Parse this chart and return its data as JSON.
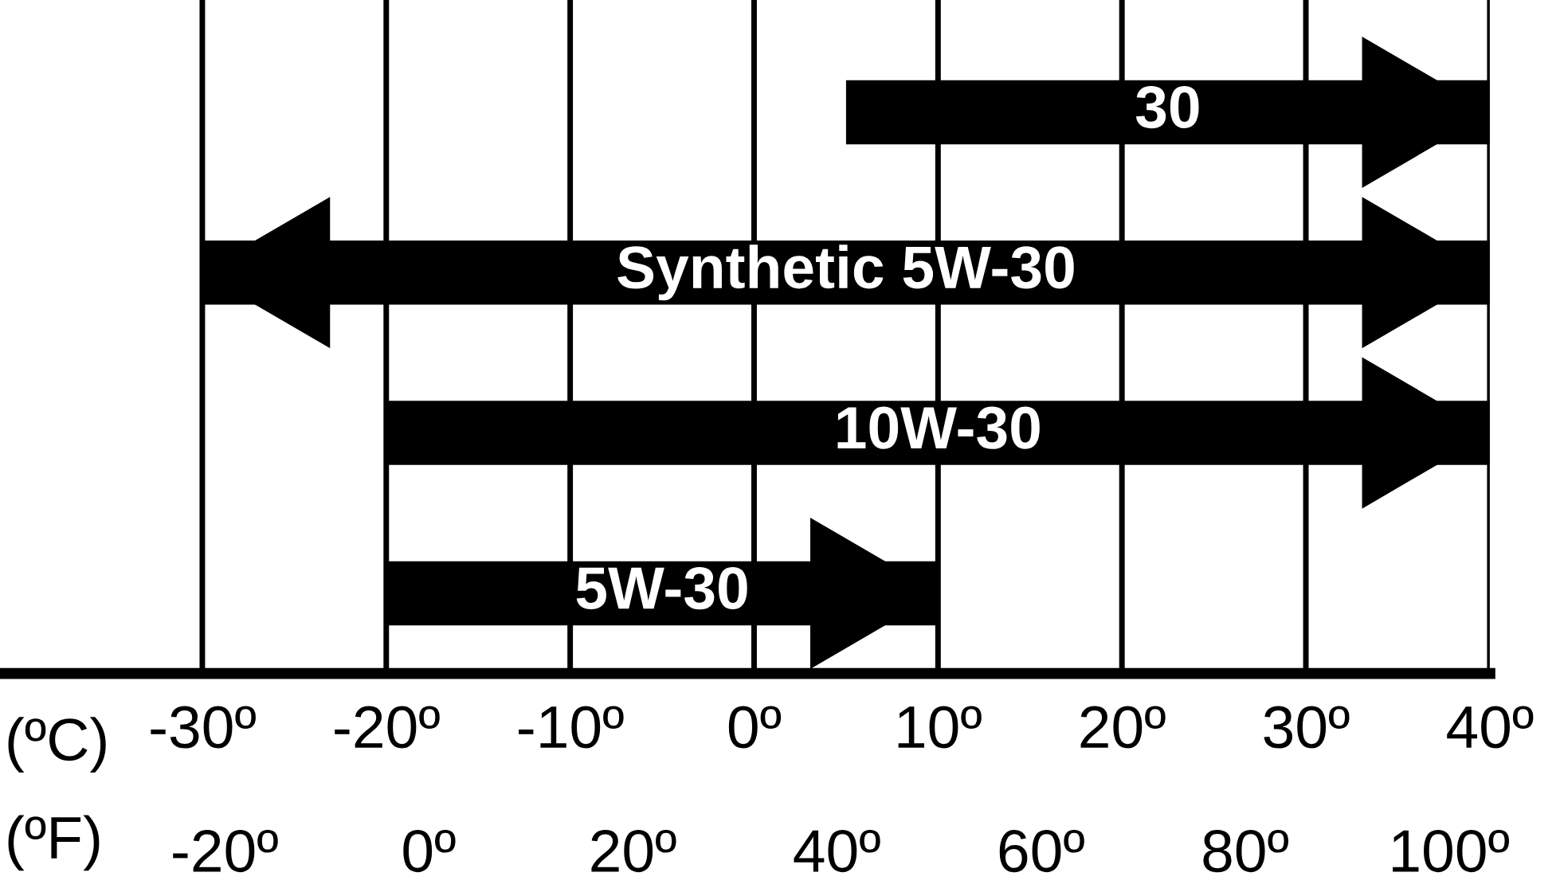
{
  "chart_data": {
    "type": "bar",
    "orientation": "horizontal",
    "categories": [
      "30",
      "Synthetic 5W-30",
      "10W-30",
      "5W-30"
    ],
    "values": [
      35,
      70,
      60,
      30
    ],
    "base": [
      5,
      -30,
      -20,
      -20
    ],
    "color": "#000000",
    "xlabel": "(ºC)",
    "x2label": "(ºF)",
    "xlim": [
      -41,
      40
    ],
    "xticks": [
      {
        "value": -30,
        "label": "-30º"
      },
      {
        "value": -20,
        "label": "-20º"
      },
      {
        "value": -10,
        "label": "-10º"
      },
      {
        "value": 0,
        "label": "0º"
      },
      {
        "value": 10,
        "label": "10º"
      },
      {
        "value": 20,
        "label": "20º"
      },
      {
        "value": 30,
        "label": "30º"
      },
      {
        "value": 40,
        "label": "40º"
      }
    ],
    "x2lim": [
      -42,
      104
    ],
    "x2ticks": [
      {
        "value": -20,
        "label": "-20º"
      },
      {
        "value": 0,
        "label": "0º"
      },
      {
        "value": 20,
        "label": "20º"
      },
      {
        "value": 40,
        "label": "40º"
      },
      {
        "value": 60,
        "label": "60º"
      },
      {
        "value": 80,
        "label": "80º"
      },
      {
        "value": 100,
        "label": "100º"
      }
    ],
    "grid": "x"
  }
}
